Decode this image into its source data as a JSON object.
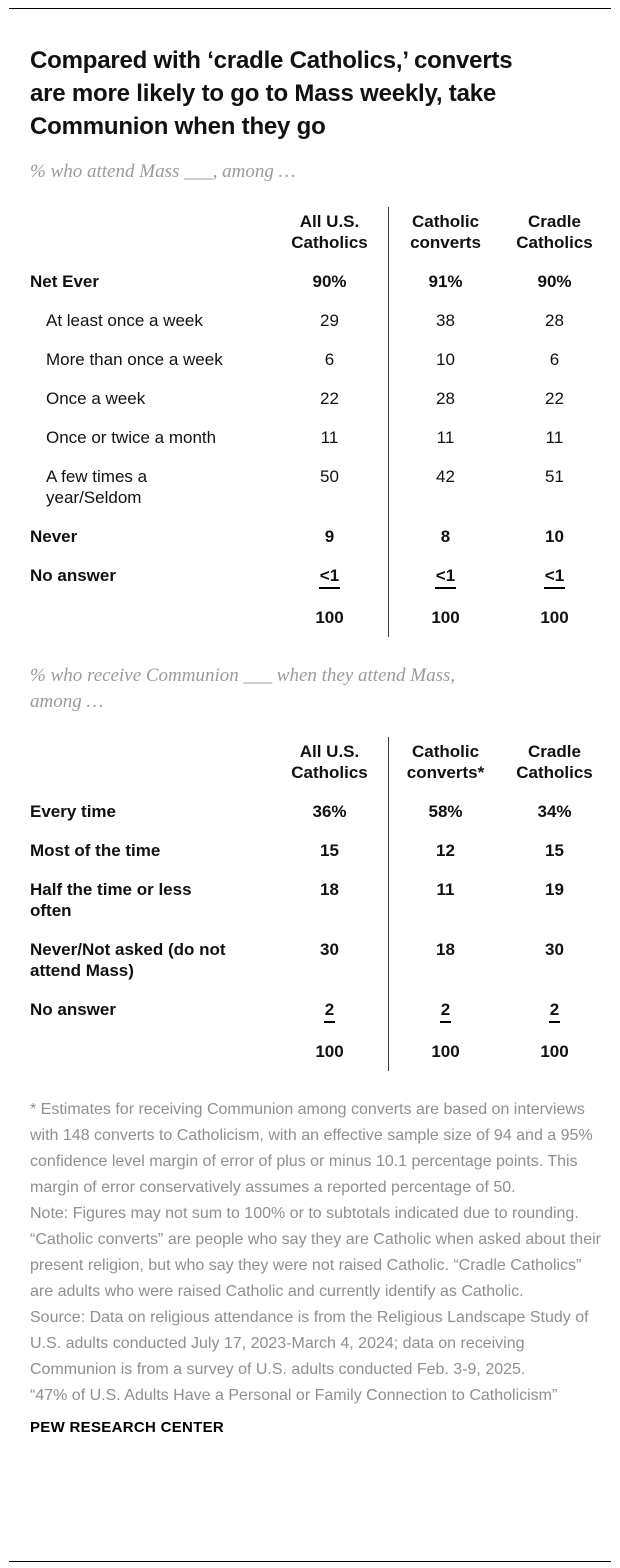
{
  "page": {
    "title": "Compared with ‘cradle Catholics,’ converts are more likely to go to Mass weekly, take Communion when they go",
    "footer": "PEW RESEARCH CENTER"
  },
  "chart_data": [
    {
      "type": "table",
      "title": "% who attend Mass ___, among …",
      "columns": [
        "All U.S. Catholics",
        "Catholic converts",
        "Cradle Catholics"
      ],
      "rows": [
        {
          "label": "Net Ever",
          "style": "bold",
          "values": [
            "90%",
            "91%",
            "90%"
          ]
        },
        {
          "label": "At least once a week",
          "style": "indent",
          "values": [
            "29",
            "38",
            "28"
          ]
        },
        {
          "label": "More than once a week",
          "style": "indent",
          "values": [
            "6",
            "10",
            "6"
          ]
        },
        {
          "label": "Once a week",
          "style": "indent",
          "values": [
            "22",
            "28",
            "22"
          ]
        },
        {
          "label": "Once or twice a month",
          "style": "indent",
          "values": [
            "11",
            "11",
            "11"
          ]
        },
        {
          "label": "A few times a year/Seldom",
          "style": "indent",
          "values": [
            "50",
            "42",
            "51"
          ]
        },
        {
          "label": "Never",
          "style": "bold",
          "values": [
            "9",
            "8",
            "10"
          ]
        },
        {
          "label": "No answer",
          "style": "bold underline",
          "values": [
            "<1",
            "<1",
            "<1"
          ]
        },
        {
          "label": "",
          "style": "total",
          "values": [
            "100",
            "100",
            "100"
          ]
        }
      ]
    },
    {
      "type": "table",
      "title": "% who receive Communion ___ when they attend Mass, among …",
      "columns": [
        "All U.S. Catholics",
        "Catholic converts*",
        "Cradle Catholics"
      ],
      "rows": [
        {
          "label": "Every time",
          "style": "bold",
          "values": [
            "36%",
            "58%",
            "34%"
          ]
        },
        {
          "label": "Most of the time",
          "style": "bold",
          "values": [
            "15",
            "12",
            "15"
          ]
        },
        {
          "label": "Half the time or less often",
          "style": "bold",
          "values": [
            "18",
            "11",
            "19"
          ]
        },
        {
          "label": "Never/Not asked (do not attend Mass)",
          "style": "bold",
          "values": [
            "30",
            "18",
            "30"
          ]
        },
        {
          "label": "No answer",
          "style": "bold underline",
          "values": [
            "2",
            "2",
            "2"
          ]
        },
        {
          "label": "",
          "style": "total",
          "values": [
            "100",
            "100",
            "100"
          ]
        }
      ]
    }
  ],
  "notes": {
    "asterisk": "* Estimates for receiving Communion among converts are based on interviews with 148 converts to Catholicism, with an effective sample size of 94 and a 95% confidence level margin of error of plus or minus 10.1 percentage points. This margin of error conservatively assumes a reported percentage of 50.",
    "note": "Note: Figures may not sum to 100% or to subtotals indicated due to rounding. “Catholic converts” are people who say they are Catholic when asked about their present religion, but who say they were not raised Catholic. “Cradle Catholics” are adults who were raised Catholic and currently identify as Catholic.",
    "source": "Source: Data on religious attendance is from the Religious Landscape Study of U.S. adults conducted July 17, 2023-March 4, 2024; data on receiving Communion is from a survey of U.S. adults conducted Feb. 3-9, 2025.",
    "report": "“47% of U.S. Adults Have a Personal or Family Connection to Catholicism”"
  }
}
